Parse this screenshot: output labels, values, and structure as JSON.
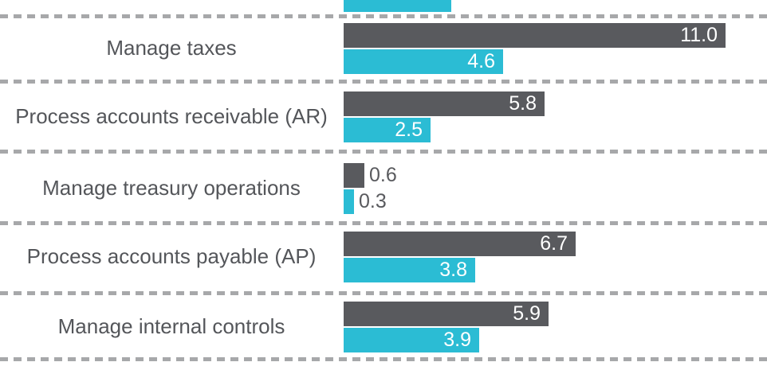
{
  "chart_data": {
    "type": "bar",
    "orientation": "horizontal",
    "title": "",
    "legend": "none",
    "grid": "off",
    "xlim": [
      0,
      12
    ],
    "categories": [
      "Manage taxes",
      "Process accounts receivable (AR)",
      "Manage treasury operations",
      "Process accounts payable (AP)",
      "Manage internal controls"
    ],
    "series": [
      {
        "name": "gray-series",
        "color": "#595a5e",
        "values": [
          11.0,
          5.8,
          0.6,
          6.7,
          5.9
        ],
        "labels": [
          "11.0",
          "5.8",
          "0.6",
          "6.7",
          "5.9"
        ]
      },
      {
        "name": "cyan-series",
        "color": "#2bbcd4",
        "values": [
          4.6,
          2.5,
          0.3,
          3.8,
          3.9
        ],
        "labels": [
          "4.6",
          "2.5",
          "0.3",
          "3.8",
          "3.9"
        ]
      }
    ],
    "partial_top_row": {
      "series": "cyan-series",
      "estimated_value": 3.1,
      "label_visible": false,
      "note": "bar cropped by top edge of image"
    },
    "value_labels": "inside bar, right-aligned; outside bar when bar too short",
    "separator_style": "horizontal dashed lines between rows",
    "colors": {
      "bar_gray": "#595a5e",
      "bar_cyan": "#2bbcd4",
      "category_text": "#54565a",
      "value_text_inside": "#ffffff",
      "value_text_outside": "#595a5e",
      "separator": "#a7a8aa",
      "background": "#ffffff"
    }
  }
}
